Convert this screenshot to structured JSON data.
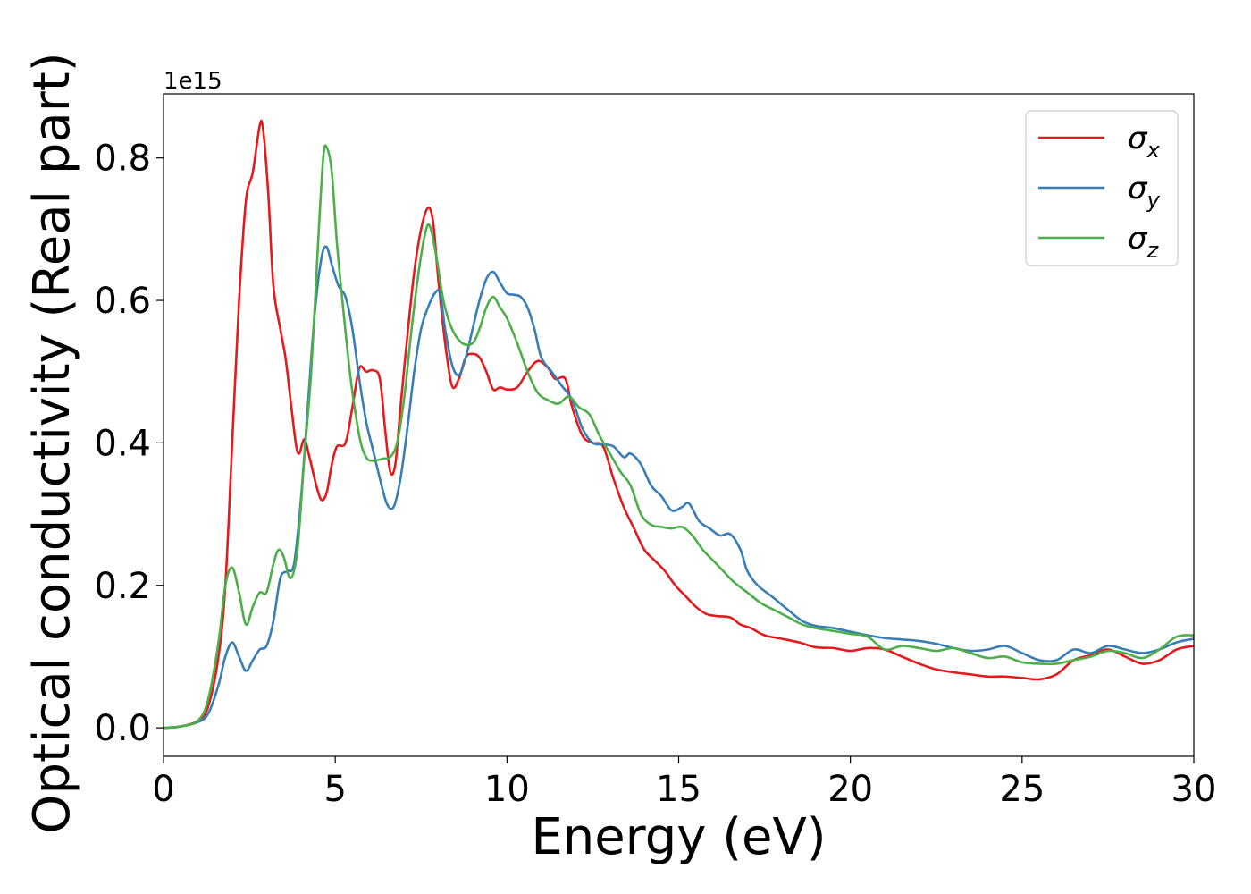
{
  "chart_data": {
    "type": "line",
    "xlabel": "Energy (eV)",
    "ylabel": "Optical conductivity (Real part)",
    "y_offset_label": "1e15",
    "xlim": [
      0,
      30
    ],
    "ylim": [
      -0.04,
      0.89
    ],
    "xticks": [
      0,
      5,
      10,
      15,
      20,
      25,
      30
    ],
    "xtick_labels": [
      "0",
      "5",
      "10",
      "15",
      "20",
      "25",
      "30"
    ],
    "yticks": [
      0.0,
      0.2,
      0.4,
      0.6,
      0.8
    ],
    "ytick_labels": [
      "0.0",
      "0.2",
      "0.4",
      "0.6",
      "0.8"
    ],
    "grid": false,
    "legend_position": "top-right",
    "series": [
      {
        "name": "σx",
        "symbol": "σ",
        "subscript": "x",
        "color": "#e41a1c",
        "points": [
          [
            0,
            0
          ],
          [
            0.5,
            0.002
          ],
          [
            1,
            0.01
          ],
          [
            1.3,
            0.03
          ],
          [
            1.6,
            0.1
          ],
          [
            1.8,
            0.2
          ],
          [
            2,
            0.4
          ],
          [
            2.2,
            0.6
          ],
          [
            2.4,
            0.74
          ],
          [
            2.6,
            0.78
          ],
          [
            2.8,
            0.845
          ],
          [
            2.9,
            0.84
          ],
          [
            3.05,
            0.75
          ],
          [
            3.2,
            0.62
          ],
          [
            3.4,
            0.56
          ],
          [
            3.55,
            0.52
          ],
          [
            3.7,
            0.46
          ],
          [
            3.85,
            0.4
          ],
          [
            3.95,
            0.385
          ],
          [
            4.1,
            0.405
          ],
          [
            4.25,
            0.38
          ],
          [
            4.45,
            0.34
          ],
          [
            4.6,
            0.32
          ],
          [
            4.75,
            0.33
          ],
          [
            4.9,
            0.37
          ],
          [
            5.05,
            0.395
          ],
          [
            5.3,
            0.4
          ],
          [
            5.5,
            0.45
          ],
          [
            5.7,
            0.505
          ],
          [
            5.9,
            0.5
          ],
          [
            6.1,
            0.502
          ],
          [
            6.3,
            0.49
          ],
          [
            6.45,
            0.42
          ],
          [
            6.6,
            0.36
          ],
          [
            6.75,
            0.37
          ],
          [
            6.9,
            0.45
          ],
          [
            7.1,
            0.55
          ],
          [
            7.3,
            0.64
          ],
          [
            7.5,
            0.7
          ],
          [
            7.7,
            0.73
          ],
          [
            7.85,
            0.71
          ],
          [
            8,
            0.63
          ],
          [
            8.2,
            0.54
          ],
          [
            8.4,
            0.48
          ],
          [
            8.6,
            0.49
          ],
          [
            8.8,
            0.52
          ],
          [
            9,
            0.525
          ],
          [
            9.2,
            0.52
          ],
          [
            9.4,
            0.5
          ],
          [
            9.6,
            0.475
          ],
          [
            9.8,
            0.478
          ],
          [
            10,
            0.475
          ],
          [
            10.3,
            0.478
          ],
          [
            10.6,
            0.5
          ],
          [
            10.9,
            0.515
          ],
          [
            11.2,
            0.505
          ],
          [
            11.4,
            0.49
          ],
          [
            11.7,
            0.49
          ],
          [
            11.9,
            0.45
          ],
          [
            12.2,
            0.41
          ],
          [
            12.5,
            0.4
          ],
          [
            12.8,
            0.395
          ],
          [
            13.1,
            0.35
          ],
          [
            13.4,
            0.31
          ],
          [
            13.7,
            0.28
          ],
          [
            14,
            0.25
          ],
          [
            14.3,
            0.235
          ],
          [
            14.6,
            0.22
          ],
          [
            14.9,
            0.2
          ],
          [
            15.2,
            0.185
          ],
          [
            15.5,
            0.17
          ],
          [
            15.8,
            0.16
          ],
          [
            16.1,
            0.157
          ],
          [
            16.5,
            0.155
          ],
          [
            16.8,
            0.145
          ],
          [
            17.1,
            0.14
          ],
          [
            17.5,
            0.13
          ],
          [
            18,
            0.125
          ],
          [
            18.5,
            0.12
          ],
          [
            19,
            0.113
          ],
          [
            19.5,
            0.112
          ],
          [
            20,
            0.108
          ],
          [
            20.5,
            0.112
          ],
          [
            21,
            0.11
          ],
          [
            21.5,
            0.1
          ],
          [
            22,
            0.09
          ],
          [
            22.5,
            0.082
          ],
          [
            23,
            0.078
          ],
          [
            23.5,
            0.075
          ],
          [
            24,
            0.072
          ],
          [
            24.5,
            0.072
          ],
          [
            25,
            0.07
          ],
          [
            25.5,
            0.068
          ],
          [
            26,
            0.075
          ],
          [
            26.5,
            0.095
          ],
          [
            27,
            0.102
          ],
          [
            27.5,
            0.11
          ],
          [
            28,
            0.1
          ],
          [
            28.5,
            0.09
          ],
          [
            29,
            0.095
          ],
          [
            29.5,
            0.11
          ],
          [
            30,
            0.115
          ]
        ]
      },
      {
        "name": "σy",
        "symbol": "σ",
        "subscript": "y",
        "color": "#377eb8",
        "points": [
          [
            0,
            0
          ],
          [
            0.5,
            0.002
          ],
          [
            1,
            0.008
          ],
          [
            1.3,
            0.02
          ],
          [
            1.6,
            0.06
          ],
          [
            1.8,
            0.1
          ],
          [
            2,
            0.12
          ],
          [
            2.2,
            0.1
          ],
          [
            2.4,
            0.08
          ],
          [
            2.6,
            0.095
          ],
          [
            2.8,
            0.11
          ],
          [
            3,
            0.115
          ],
          [
            3.2,
            0.15
          ],
          [
            3.4,
            0.21
          ],
          [
            3.6,
            0.22
          ],
          [
            3.8,
            0.23
          ],
          [
            4,
            0.32
          ],
          [
            4.2,
            0.45
          ],
          [
            4.4,
            0.58
          ],
          [
            4.6,
            0.66
          ],
          [
            4.75,
            0.675
          ],
          [
            4.9,
            0.65
          ],
          [
            5.1,
            0.62
          ],
          [
            5.3,
            0.605
          ],
          [
            5.5,
            0.56
          ],
          [
            5.7,
            0.49
          ],
          [
            5.9,
            0.43
          ],
          [
            6.1,
            0.39
          ],
          [
            6.3,
            0.35
          ],
          [
            6.5,
            0.315
          ],
          [
            6.7,
            0.31
          ],
          [
            6.9,
            0.35
          ],
          [
            7.1,
            0.42
          ],
          [
            7.3,
            0.5
          ],
          [
            7.5,
            0.56
          ],
          [
            7.7,
            0.59
          ],
          [
            7.9,
            0.61
          ],
          [
            8.05,
            0.61
          ],
          [
            8.2,
            0.56
          ],
          [
            8.4,
            0.51
          ],
          [
            8.6,
            0.495
          ],
          [
            8.8,
            0.52
          ],
          [
            9,
            0.56
          ],
          [
            9.2,
            0.6
          ],
          [
            9.4,
            0.63
          ],
          [
            9.6,
            0.64
          ],
          [
            9.8,
            0.625
          ],
          [
            10,
            0.61
          ],
          [
            10.2,
            0.608
          ],
          [
            10.4,
            0.605
          ],
          [
            10.6,
            0.59
          ],
          [
            10.8,
            0.56
          ],
          [
            11,
            0.52
          ],
          [
            11.3,
            0.5
          ],
          [
            11.6,
            0.48
          ],
          [
            11.9,
            0.46
          ],
          [
            12.2,
            0.42
          ],
          [
            12.5,
            0.4
          ],
          [
            12.8,
            0.398
          ],
          [
            13.1,
            0.395
          ],
          [
            13.4,
            0.38
          ],
          [
            13.6,
            0.385
          ],
          [
            13.9,
            0.37
          ],
          [
            14.2,
            0.34
          ],
          [
            14.5,
            0.325
          ],
          [
            14.8,
            0.305
          ],
          [
            15.1,
            0.31
          ],
          [
            15.3,
            0.315
          ],
          [
            15.6,
            0.29
          ],
          [
            15.9,
            0.28
          ],
          [
            16.2,
            0.27
          ],
          [
            16.5,
            0.272
          ],
          [
            16.8,
            0.25
          ],
          [
            17,
            0.22
          ],
          [
            17.3,
            0.2
          ],
          [
            17.7,
            0.185
          ],
          [
            18.2,
            0.165
          ],
          [
            18.6,
            0.15
          ],
          [
            19,
            0.143
          ],
          [
            19.5,
            0.14
          ],
          [
            20,
            0.135
          ],
          [
            20.5,
            0.13
          ],
          [
            21,
            0.126
          ],
          [
            21.5,
            0.124
          ],
          [
            22,
            0.122
          ],
          [
            22.5,
            0.118
          ],
          [
            23,
            0.112
          ],
          [
            23.5,
            0.108
          ],
          [
            24,
            0.11
          ],
          [
            24.5,
            0.115
          ],
          [
            25,
            0.105
          ],
          [
            25.5,
            0.095
          ],
          [
            26,
            0.095
          ],
          [
            26.5,
            0.11
          ],
          [
            27,
            0.105
          ],
          [
            27.5,
            0.115
          ],
          [
            28,
            0.11
          ],
          [
            28.5,
            0.105
          ],
          [
            29,
            0.11
          ],
          [
            29.5,
            0.12
          ],
          [
            30,
            0.125
          ]
        ]
      },
      {
        "name": "σz",
        "symbol": "σ",
        "subscript": "z",
        "color": "#4daf4a",
        "points": [
          [
            0,
            0
          ],
          [
            0.5,
            0.002
          ],
          [
            1,
            0.01
          ],
          [
            1.3,
            0.04
          ],
          [
            1.6,
            0.12
          ],
          [
            1.8,
            0.2
          ],
          [
            2,
            0.225
          ],
          [
            2.2,
            0.19
          ],
          [
            2.4,
            0.145
          ],
          [
            2.6,
            0.17
          ],
          [
            2.8,
            0.19
          ],
          [
            3,
            0.19
          ],
          [
            3.2,
            0.23
          ],
          [
            3.35,
            0.25
          ],
          [
            3.5,
            0.24
          ],
          [
            3.7,
            0.21
          ],
          [
            3.9,
            0.25
          ],
          [
            4.1,
            0.38
          ],
          [
            4.3,
            0.5
          ],
          [
            4.5,
            0.68
          ],
          [
            4.65,
            0.8
          ],
          [
            4.75,
            0.815
          ],
          [
            4.9,
            0.78
          ],
          [
            5.05,
            0.68
          ],
          [
            5.25,
            0.58
          ],
          [
            5.45,
            0.49
          ],
          [
            5.7,
            0.41
          ],
          [
            5.9,
            0.38
          ],
          [
            6.1,
            0.375
          ],
          [
            6.4,
            0.378
          ],
          [
            6.6,
            0.38
          ],
          [
            6.8,
            0.4
          ],
          [
            7,
            0.46
          ],
          [
            7.2,
            0.55
          ],
          [
            7.4,
            0.63
          ],
          [
            7.6,
            0.69
          ],
          [
            7.75,
            0.705
          ],
          [
            7.95,
            0.66
          ],
          [
            8.15,
            0.6
          ],
          [
            8.4,
            0.56
          ],
          [
            8.7,
            0.54
          ],
          [
            9,
            0.54
          ],
          [
            9.2,
            0.56
          ],
          [
            9.4,
            0.59
          ],
          [
            9.6,
            0.605
          ],
          [
            9.8,
            0.59
          ],
          [
            10,
            0.575
          ],
          [
            10.3,
            0.54
          ],
          [
            10.6,
            0.5
          ],
          [
            10.9,
            0.47
          ],
          [
            11.2,
            0.46
          ],
          [
            11.5,
            0.455
          ],
          [
            11.8,
            0.465
          ],
          [
            12.1,
            0.45
          ],
          [
            12.4,
            0.44
          ],
          [
            12.7,
            0.41
          ],
          [
            13,
            0.385
          ],
          [
            13.3,
            0.36
          ],
          [
            13.6,
            0.34
          ],
          [
            13.9,
            0.3
          ],
          [
            14.2,
            0.285
          ],
          [
            14.5,
            0.282
          ],
          [
            14.8,
            0.28
          ],
          [
            15.1,
            0.282
          ],
          [
            15.4,
            0.27
          ],
          [
            15.7,
            0.25
          ],
          [
            16,
            0.235
          ],
          [
            16.3,
            0.22
          ],
          [
            16.6,
            0.205
          ],
          [
            17,
            0.19
          ],
          [
            17.4,
            0.175
          ],
          [
            17.8,
            0.165
          ],
          [
            18.2,
            0.155
          ],
          [
            18.6,
            0.145
          ],
          [
            19,
            0.14
          ],
          [
            19.5,
            0.136
          ],
          [
            20,
            0.132
          ],
          [
            20.5,
            0.128
          ],
          [
            21,
            0.11
          ],
          [
            21.5,
            0.115
          ],
          [
            22,
            0.112
          ],
          [
            22.5,
            0.108
          ],
          [
            23,
            0.112
          ],
          [
            23.5,
            0.105
          ],
          [
            24,
            0.098
          ],
          [
            24.5,
            0.1
          ],
          [
            25,
            0.092
          ],
          [
            25.5,
            0.09
          ],
          [
            26,
            0.09
          ],
          [
            26.5,
            0.095
          ],
          [
            27,
            0.1
          ],
          [
            27.5,
            0.108
          ],
          [
            28,
            0.105
          ],
          [
            28.5,
            0.098
          ],
          [
            29,
            0.11
          ],
          [
            29.5,
            0.128
          ],
          [
            30,
            0.13
          ]
        ]
      }
    ]
  }
}
